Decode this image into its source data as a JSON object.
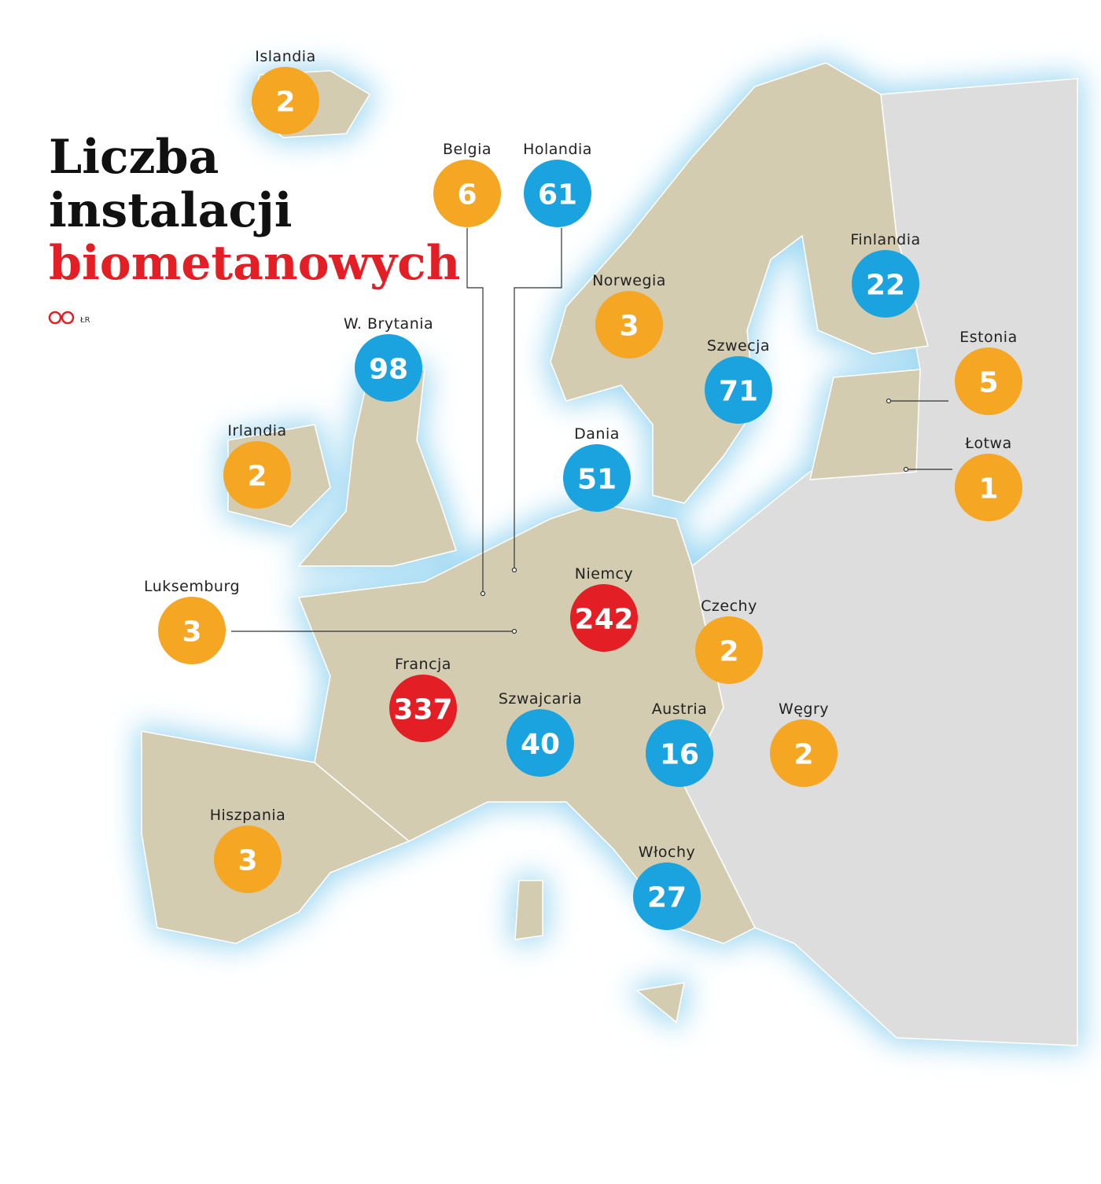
{
  "title": [
    "Liczba",
    "instalacji",
    "biometanowych"
  ],
  "credit": "ŁR",
  "countries": [
    {
      "name": "Islandia",
      "value": 2,
      "color": "#f5a623"
    },
    {
      "name": "Belgia",
      "value": 6,
      "color": "#f5a623"
    },
    {
      "name": "Holandia",
      "value": 61,
      "color": "#1ba3e0"
    },
    {
      "name": "Finlandia",
      "value": 22,
      "color": "#1ba3e0"
    },
    {
      "name": "Norwegia",
      "value": 3,
      "color": "#f5a623"
    },
    {
      "name": "W. Brytania",
      "value": 98,
      "color": "#1ba3e0"
    },
    {
      "name": "Szwecja",
      "value": 71,
      "color": "#1ba3e0"
    },
    {
      "name": "Estonia",
      "value": 5,
      "color": "#f5a623"
    },
    {
      "name": "Irlandia",
      "value": 2,
      "color": "#f5a623"
    },
    {
      "name": "Dania",
      "value": 51,
      "color": "#1ba3e0"
    },
    {
      "name": "Łotwa",
      "value": 1,
      "color": "#f5a623"
    },
    {
      "name": "Luksemburg",
      "value": 3,
      "color": "#f5a623"
    },
    {
      "name": "Niemcy",
      "value": 242,
      "color": "#e31e24"
    },
    {
      "name": "Czechy",
      "value": 2,
      "color": "#f5a623"
    },
    {
      "name": "Francja",
      "value": 337,
      "color": "#e31e24"
    },
    {
      "name": "Szwajcaria",
      "value": 40,
      "color": "#1ba3e0"
    },
    {
      "name": "Austria",
      "value": 16,
      "color": "#1ba3e0"
    },
    {
      "name": "Węgry",
      "value": 2,
      "color": "#f5a623"
    },
    {
      "name": "Hiszpania",
      "value": 3,
      "color": "#f5a623"
    },
    {
      "name": "Włochy",
      "value": 27,
      "color": "#1ba3e0"
    }
  ]
}
